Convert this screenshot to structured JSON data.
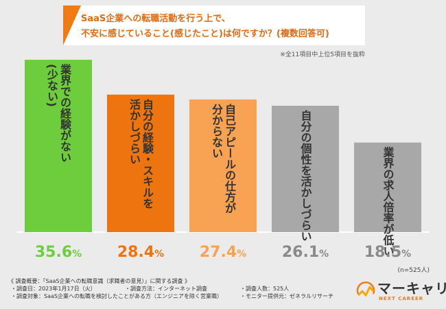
{
  "title": {
    "line1": "SaaS企業への転職活動を行う上で、",
    "line2": "不安に感じていること(感じたこと)は何ですか？(複数回答可)"
  },
  "note": "※全11項目中上位5項目を抜粋",
  "sample_size": "(n=525人)",
  "chart_data": {
    "type": "bar",
    "title": "SaaS企業への転職活動を行う上で、不安に感じていること(感じたこと)は何ですか？(複数回答可)",
    "categories": [
      "業界での経験がない(少ない)",
      "自分の経験・スキルを活かしづらい",
      "自己アピールの仕方が分からない",
      "自分の個性を活かしづらい",
      "業界の求人倍率が低い"
    ],
    "values": [
      35.6,
      28.4,
      27.4,
      26.1,
      18.5
    ],
    "value_labels": [
      {
        "int": "35.",
        "dec": "6",
        "unit": "%"
      },
      {
        "int": "28.",
        "dec": "4",
        "unit": "%"
      },
      {
        "int": "27.",
        "dec": "4",
        "unit": "%"
      },
      {
        "int": "26.",
        "dec": "1",
        "unit": "%"
      },
      {
        "int": "18.",
        "dec": "5",
        "unit": "%"
      }
    ],
    "bar_label_lines": [
      [
        "業界での経験がない",
        "(少ない)"
      ],
      [
        "自分の経験・スキルを",
        "活かしづらい"
      ],
      [
        "自己アピールの仕方が",
        "分からない"
      ],
      [
        "自分の個性を活かしづらい"
      ],
      [
        "業界の求人倍率が低い"
      ]
    ],
    "colors": [
      "#6dcd3c",
      "#ee7410",
      "#f8a253",
      "#a8a8a8",
      "#a8a8a8"
    ],
    "label_colors": [
      "#6dcd3c",
      "#ee7410",
      "#f8a253",
      "#8a8a8a",
      "#8a8a8a"
    ],
    "bar_text_colors": [
      "#333333",
      "#333333",
      "#333333",
      "#333333",
      "#333333"
    ],
    "ylim": [
      0,
      40
    ],
    "grid": false,
    "legend": "none"
  },
  "footer": {
    "heading": "《 調査概要：「SaaS企業への転職意識（求職者の意見）」に関する調査 》",
    "rows": [
      [
        "・調査日：2023年1月17日（火）",
        "・調査方法：インターネット調査",
        "・調査人数：525人"
      ],
      [
        "・調査対象：SaaS企業への転職を検討したことがある方（エンジニアを除く営業職）",
        "",
        "・モニター提供元：ゼネラルリサーチ"
      ]
    ]
  },
  "logo": {
    "name": "マーキャリ",
    "sub": "NEXT CAREER",
    "icon": "chart-line-logo-icon",
    "accent": "#f07a14"
  }
}
